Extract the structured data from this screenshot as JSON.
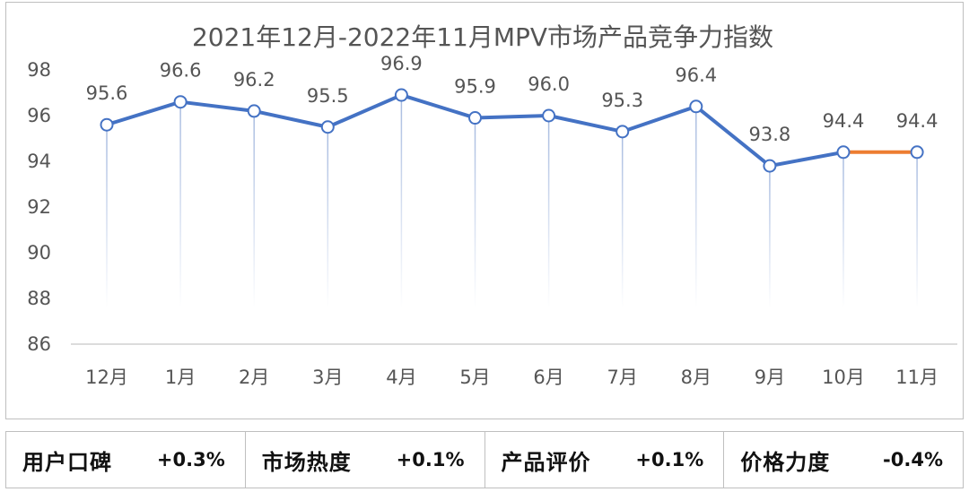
{
  "chart_data": {
    "type": "line",
    "title": "2021年12月-2022年11月MPV市场产品竞争力指数",
    "categories": [
      "12月",
      "1月",
      "2月",
      "3月",
      "4月",
      "5月",
      "6月",
      "7月",
      "8月",
      "9月",
      "10月",
      "11月"
    ],
    "values": [
      95.6,
      96.6,
      96.2,
      95.5,
      96.9,
      95.9,
      96.0,
      95.3,
      96.4,
      93.8,
      94.4,
      94.4
    ],
    "value_labels": [
      "95.6",
      "96.6",
      "96.2",
      "95.5",
      "96.9",
      "95.9",
      "96.0",
      "95.3",
      "96.4",
      "93.8",
      "94.4",
      "94.4"
    ],
    "ylim": [
      86,
      98
    ],
    "yticks": [
      "86",
      "88",
      "90",
      "92",
      "94",
      "96",
      "98"
    ],
    "xlabel": "",
    "ylabel": "",
    "grid": false,
    "legend": "none",
    "series_color": "#4472c4",
    "highlight_segment_color": "#ed7d31",
    "highlight_segment_from_index": 10
  },
  "metrics": [
    {
      "label": "用户口碑",
      "value": "+0.3%"
    },
    {
      "label": "市场热度",
      "value": "+0.1%"
    },
    {
      "label": "产品评价",
      "value": "+0.1%"
    },
    {
      "label": "价格力度",
      "value": "-0.4%"
    }
  ]
}
